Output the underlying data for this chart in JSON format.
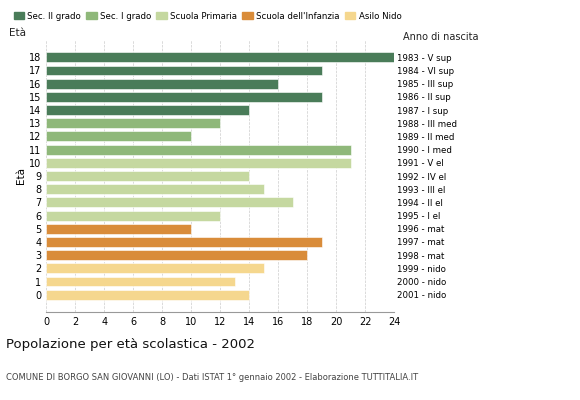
{
  "ages": [
    18,
    17,
    16,
    15,
    14,
    13,
    12,
    11,
    10,
    9,
    8,
    7,
    6,
    5,
    4,
    3,
    2,
    1,
    0
  ],
  "values": [
    24,
    19,
    16,
    19,
    14,
    12,
    10,
    21,
    21,
    14,
    15,
    17,
    12,
    10,
    19,
    18,
    15,
    13,
    14
  ],
  "right_labels": [
    "1983 - V sup",
    "1984 - VI sup",
    "1985 - III sup",
    "1986 - II sup",
    "1987 - I sup",
    "1988 - III med",
    "1989 - II med",
    "1990 - I med",
    "1991 - V el",
    "1992 - IV el",
    "1993 - III el",
    "1994 - II el",
    "1995 - I el",
    "1996 - mat",
    "1997 - mat",
    "1998 - mat",
    "1999 - nido",
    "2000 - nido",
    "2001 - nido"
  ],
  "bar_colors": [
    "#4a7c59",
    "#4a7c59",
    "#4a7c59",
    "#4a7c59",
    "#4a7c59",
    "#8fb87a",
    "#8fb87a",
    "#8fb87a",
    "#c5d8a0",
    "#c5d8a0",
    "#c5d8a0",
    "#c5d8a0",
    "#c5d8a0",
    "#d98c3a",
    "#d98c3a",
    "#d98c3a",
    "#f5d78e",
    "#f5d78e",
    "#f5d78e"
  ],
  "legend_labels": [
    "Sec. II grado",
    "Sec. I grado",
    "Scuola Primaria",
    "Scuola dell'Infanzia",
    "Asilo Nido"
  ],
  "legend_colors": [
    "#4a7c59",
    "#8fb87a",
    "#c5d8a0",
    "#d98c3a",
    "#f5d78e"
  ],
  "title": "Popolazione per età scolastica - 2002",
  "subtitle": "COMUNE DI BORGO SAN GIOVANNI (LO) - Dati ISTAT 1° gennaio 2002 - Elaborazione TUTTITALIA.IT",
  "ylabel": "Età",
  "right_axis_label": "Anno di nascita",
  "xlim": [
    0,
    24
  ],
  "xticks": [
    0,
    2,
    4,
    6,
    8,
    10,
    12,
    14,
    16,
    18,
    20,
    22,
    24
  ],
  "bg_color": "#ffffff",
  "grid_color": "#cccccc"
}
